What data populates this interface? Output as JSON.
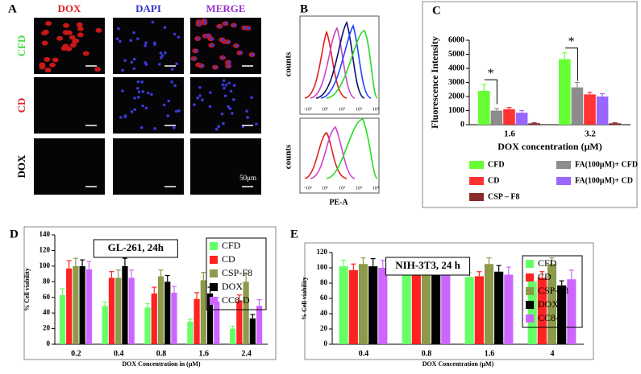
{
  "panels": [
    "A",
    "B",
    "C",
    "D",
    "E"
  ],
  "microscopy": {
    "columns": [
      "DOX",
      "DAPI",
      "MERGE"
    ],
    "rows": [
      "CFD",
      "CD",
      "DOX"
    ],
    "scale_bar": "50μm"
  },
  "flow": {
    "y_label": "counts",
    "x_label": "PE-A",
    "x_ticks": [
      "-10¹",
      "10¹",
      "10²",
      "10³",
      "10⁴"
    ]
  },
  "chart_data": [
    {
      "type": "bar",
      "y_label": "Fluorescence Intensity",
      "x_label": "DOX concentration (μM)",
      "categories": [
        "1.6",
        "3.2"
      ],
      "ylim": [
        0,
        6000
      ],
      "yticks": [
        0,
        1000,
        2000,
        3000,
        4000,
        5000,
        6000
      ],
      "grid": false,
      "legend": "below",
      "annotations": [
        {
          "text": "*",
          "category": 0
        },
        {
          "text": "*",
          "category": 1
        }
      ],
      "series": [
        {
          "name": "CFD",
          "color": "#66ff33",
          "values": [
            2400,
            4650
          ],
          "errors": [
            450,
            450
          ]
        },
        {
          "name": "FA(100μM)+ CFD",
          "color": "#8c8c8c",
          "values": [
            1000,
            2650
          ],
          "errors": [
            150,
            350
          ]
        },
        {
          "name": "CD",
          "color": "#ff3333",
          "values": [
            1100,
            2150
          ],
          "errors": [
            120,
            150
          ]
        },
        {
          "name": "FA(100μM)+ CD",
          "color": "#9966ff",
          "values": [
            850,
            2000
          ],
          "errors": [
            150,
            200
          ]
        },
        {
          "name": "CSP – F8",
          "color": "#8b2a2a",
          "values": [
            100,
            100
          ],
          "errors": [
            30,
            30
          ]
        }
      ]
    },
    {
      "type": "bar",
      "title": "GL-261, 24h",
      "y_label": "% Cell viability",
      "x_label": "DOX Concentration in (μM)",
      "categories": [
        "0.2",
        "0.4",
        "0.8",
        "1.6",
        "2.4"
      ],
      "ylim": [
        0,
        140
      ],
      "yticks": [
        0,
        20,
        40,
        60,
        80,
        100,
        120,
        140
      ],
      "grid": false,
      "legend": "upper right",
      "series": [
        {
          "name": "CFD",
          "color": "#66ff66",
          "values": [
            63,
            49,
            47,
            29,
            20
          ],
          "errors": [
            8,
            5,
            5,
            3,
            3
          ]
        },
        {
          "name": "CD",
          "color": "#ff2222",
          "values": [
            97,
            85,
            65,
            58,
            55
          ],
          "errors": [
            10,
            8,
            8,
            8,
            8
          ]
        },
        {
          "name": "CSP-F8",
          "color": "#8c9a4a",
          "values": [
            100,
            85,
            87,
            82,
            80
          ],
          "errors": [
            10,
            10,
            8,
            10,
            10
          ]
        },
        {
          "name": "DOX",
          "color": "#000000",
          "values": [
            100,
            100,
            80,
            65,
            33
          ],
          "errors": [
            8,
            10,
            8,
            8,
            5
          ]
        },
        {
          "name": "CC8-D",
          "color": "#cc66ff",
          "values": [
            96,
            85,
            66,
            55,
            49
          ],
          "errors": [
            10,
            10,
            8,
            5,
            8
          ]
        }
      ]
    },
    {
      "type": "bar",
      "title": "NIH-3T3, 24 h",
      "y_label": "% Cell viability",
      "x_label": "DOX Concentration (μM)",
      "categories": [
        "0.4",
        "0.8",
        "1.6",
        "4"
      ],
      "ylim": [
        0,
        120
      ],
      "yticks": [
        0,
        20,
        40,
        60,
        80,
        100,
        120
      ],
      "grid": false,
      "legend": "upper right",
      "series": [
        {
          "name": "CFD",
          "color": "#66ff66",
          "values": [
            102,
            92,
            88,
            82
          ],
          "errors": [
            8,
            8,
            6,
            5
          ]
        },
        {
          "name": "CD",
          "color": "#ff2222",
          "values": [
            97,
            96,
            89,
            87
          ],
          "errors": [
            8,
            8,
            6,
            8
          ]
        },
        {
          "name": "CSP-F8",
          "color": "#8c9a4a",
          "values": [
            105,
            105,
            105,
            105
          ],
          "errors": [
            8,
            8,
            8,
            8
          ]
        },
        {
          "name": "DOX",
          "color": "#000000",
          "values": [
            102,
            101,
            95,
            77
          ],
          "errors": [
            10,
            10,
            8,
            6
          ]
        },
        {
          "name": "CC8-D",
          "color": "#cc66ff",
          "values": [
            100,
            97,
            91,
            85
          ],
          "errors": [
            10,
            10,
            10,
            12
          ]
        }
      ]
    }
  ]
}
